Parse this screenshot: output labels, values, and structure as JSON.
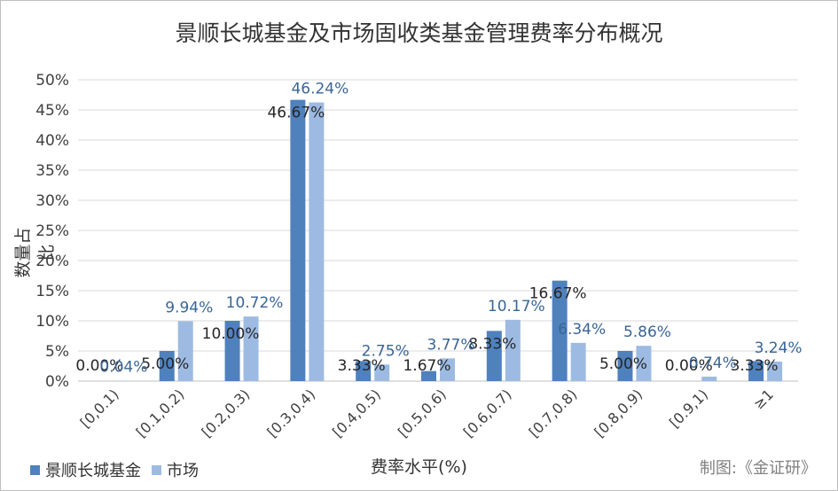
{
  "chart_data": {
    "type": "bar",
    "title": "景顺长城基金及市场固收类基金管理费率分布概况",
    "xlabel": "费率水平(%)",
    "ylabel": "数量占比",
    "ylim": [
      0,
      50
    ],
    "yticks": [
      "0%",
      "5%",
      "10%",
      "15%",
      "20%",
      "25%",
      "30%",
      "35%",
      "40%",
      "45%",
      "50%"
    ],
    "grid": true,
    "legend_position": "bottom-left",
    "categories": [
      "[0,0.1)",
      "[0.1,0.2)",
      "[0.2,0.3)",
      "[0.3,0.4)",
      "[0.4,0.5)",
      "[0.5,0.6)",
      "[0.6,0.7)",
      "[0.7,0.8)",
      "[0.8,0.9)",
      "[0.9,1)",
      "≥1"
    ],
    "series": [
      {
        "name": "景顺长城基金",
        "color": "#4f81bd",
        "label_color": "#262626",
        "values": [
          0.0,
          5.0,
          10.0,
          46.67,
          3.33,
          1.67,
          8.33,
          16.67,
          5.0,
          0.0,
          3.33
        ],
        "labels": [
          "0.00%",
          "5.00%",
          "10.00%",
          "46.67%",
          "3.33%",
          "1.67%",
          "8.33%",
          "16.67%",
          "5.00%",
          "0.00%",
          "3.33%"
        ]
      },
      {
        "name": "市场",
        "color": "#9dbbe2",
        "label_color": "#3a6595",
        "values": [
          0.04,
          9.94,
          10.72,
          46.24,
          2.75,
          3.77,
          10.17,
          6.34,
          5.86,
          0.74,
          3.24
        ],
        "labels": [
          "0.04%",
          "9.94%",
          "10.72%",
          "46.24%",
          "2.75%",
          "3.77%",
          "10.17%",
          "6.34%",
          "5.86%",
          "0.74%",
          "3.24%"
        ]
      }
    ]
  },
  "source": "制图:《金证研》"
}
